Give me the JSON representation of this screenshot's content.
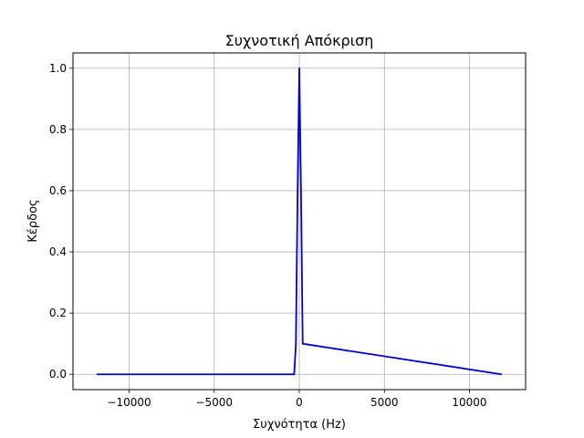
{
  "chart_data": {
    "type": "line",
    "title": "Συχνοτική Απόκριση",
    "xlabel": "Συχνότητα (Hz)",
    "ylabel": "Κέρδος",
    "xlim": [
      -13300,
      13300
    ],
    "ylim": [
      -0.05,
      1.05
    ],
    "xticks": [
      -10000,
      -5000,
      0,
      5000,
      10000
    ],
    "xtick_labels": [
      "−10000",
      "−5000",
      "0",
      "5000",
      "10000"
    ],
    "yticks": [
      0.0,
      0.2,
      0.4,
      0.6,
      0.8,
      1.0
    ],
    "ytick_labels": [
      "0.0",
      "0.2",
      "0.4",
      "0.6",
      "0.8",
      "1.0"
    ],
    "grid": true,
    "series": [
      {
        "color": "#0000cc",
        "x": [
          -11900,
          -300,
          -200,
          -100,
          0,
          100,
          200,
          11900
        ],
        "y": [
          0.0,
          0.0,
          0.1,
          0.6,
          1.0,
          0.6,
          0.1,
          0.0
        ]
      }
    ]
  }
}
